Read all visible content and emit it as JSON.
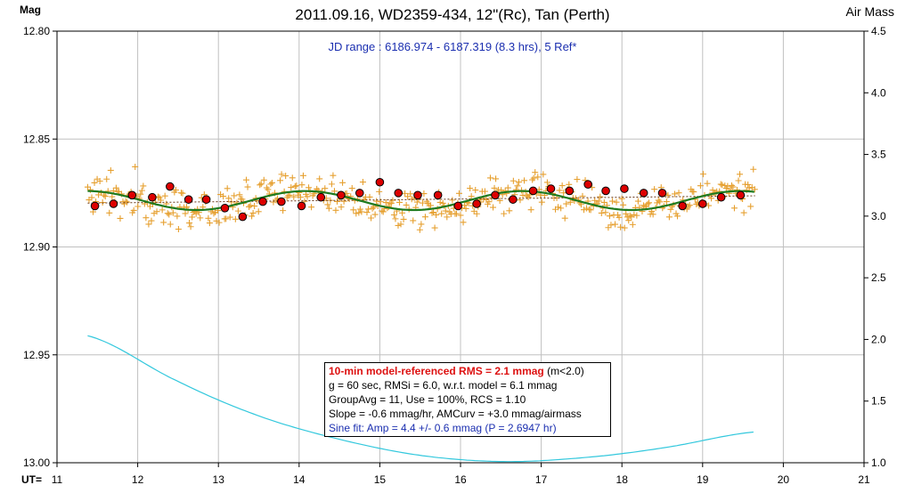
{
  "chart_data": {
    "type": "scatter",
    "title": "2011.09.16, WD2359-434, 12\"(Rc), Tan (Perth)",
    "left_axis_label": "Mag",
    "right_axis_label": "Air Mass",
    "x_axis_prefix": "UT=",
    "jd_range_text": "JD range : 6186.974 - 6187.319 (8.3 hrs), 5 Ref*",
    "xlim": [
      11,
      21
    ],
    "ylim_mag": [
      12.8,
      13.0
    ],
    "ylim_airmass": [
      1.0,
      4.5
    ],
    "x_ticks": [
      "11",
      "12",
      "13",
      "14",
      "15",
      "16",
      "17",
      "18",
      "19",
      "20",
      "21"
    ],
    "y_ticks_mag": [
      "12.80",
      "12.85",
      "12.90",
      "12.95",
      "13.00"
    ],
    "y_ticks_airmass": [
      "4.5",
      "4.0",
      "3.5",
      "3.0",
      "2.5",
      "2.0",
      "1.5",
      "1.0"
    ],
    "grid": true,
    "series": [
      {
        "name": "10-min averages",
        "color": "#dd0000",
        "x": [
          11.47,
          11.7,
          11.93,
          12.18,
          12.4,
          12.63,
          12.85,
          13.08,
          13.3,
          13.55,
          13.78,
          14.03,
          14.27,
          14.52,
          14.75,
          15.0,
          15.23,
          15.47,
          15.72,
          15.97,
          16.2,
          16.43,
          16.65,
          16.9,
          17.12,
          17.35,
          17.58,
          17.8,
          18.03,
          18.27,
          18.5,
          18.75,
          19.0,
          19.23,
          19.47
        ],
        "y": [
          12.881,
          12.88,
          12.876,
          12.877,
          12.872,
          12.878,
          12.878,
          12.882,
          12.886,
          12.879,
          12.879,
          12.881,
          12.877,
          12.876,
          12.875,
          12.87,
          12.875,
          12.876,
          12.876,
          12.881,
          12.88,
          12.876,
          12.878,
          12.874,
          12.873,
          12.874,
          12.871,
          12.874,
          12.873,
          12.875,
          12.875,
          12.881,
          12.88,
          12.877,
          12.876
        ]
      },
      {
        "name": "Sine fit",
        "color": "#1e7a1e",
        "amp_mmag": 4.4,
        "period_hr": 2.6947,
        "mean": 12.8785,
        "x_start": 11.38,
        "x_end": 19.65,
        "phase_ref": 11.38
      },
      {
        "name": "Air mass",
        "color": "#33c8dd",
        "x": [
          11.38,
          12.5,
          13.5,
          14.5,
          15.5,
          16.5,
          17.5,
          18.5,
          19.65
        ],
        "airmass": [
          2.03,
          1.66,
          1.38,
          1.19,
          1.06,
          1.01,
          1.04,
          1.12,
          1.25
        ]
      }
    ]
  },
  "legend": {
    "line1_red": "10-min model-referenced RMS = 2.1 mmag",
    "line1_tail": "(m<2.0)",
    "line2": "g = 60 sec, RMSi = 6.0, w.r.t. model = 6.1 mmag",
    "line3": "GroupAvg  = 11, Use = 100%, RCS = 1.10",
    "line4": "Slope = -0.6 mmag/hr, AMCurv  = +3.0 mmag/airmass",
    "line5": "Sine fit: Amp = 4.4 +/- 0.6 mmag (P = 2.6947  hr)"
  },
  "colors": {
    "raw_points": "#e6a030",
    "averages": "#dd0000",
    "sine": "#1e7a1e",
    "trend": "#6b3a1a",
    "airmass": "#33c8dd",
    "grid": "#c0c0c0"
  }
}
